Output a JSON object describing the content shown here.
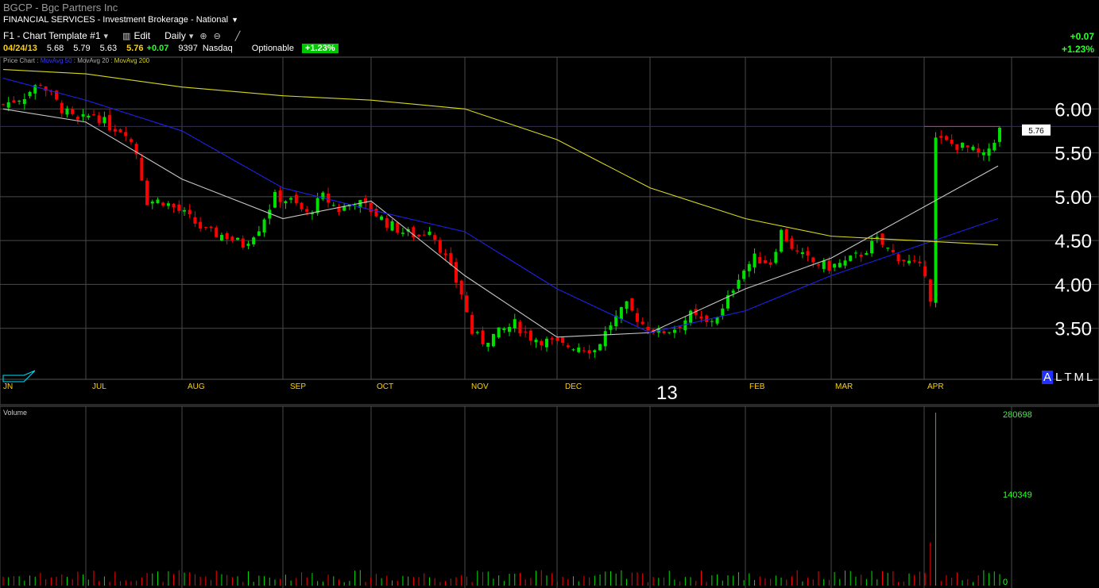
{
  "header": {
    "title": "BGCP - Bgc Partners Inc",
    "sector": "FINANCIAL SERVICES - Investment Brokerage - National"
  },
  "toolbar": {
    "template": "F1 - Chart Template #1",
    "edit": "Edit",
    "period": "Daily"
  },
  "quote": {
    "date": "04/24/13",
    "open": "5.68",
    "high": "5.79",
    "low": "5.63",
    "last": "5.76",
    "change": "+0.07",
    "volume": "9397",
    "exchange": "Nasdaq",
    "optionable": "Optionable",
    "pct_change": "+1.23%"
  },
  "right_summary": {
    "change": "+0.07",
    "pct": "+1.23%"
  },
  "price_legend": {
    "label": "Price Chart",
    "ma50": "MovAvg 50",
    "ma20": "MovAvg 20",
    "ma200": "MovAvg 200"
  },
  "volume_panel": {
    "label": "Volume",
    "ticks": [
      "280698",
      "140349",
      "0"
    ]
  },
  "time_period_buttons": [
    "A",
    "L",
    "T",
    "M",
    "L"
  ],
  "year_label": "13",
  "colors": {
    "up": "#00e000",
    "down": "#ff0000",
    "ma20": "#c8c8c8",
    "ma50": "#2020e8",
    "ma200": "#d8d820",
    "grid": "#4a4a4a"
  },
  "chart_data": {
    "type": "candlestick",
    "title": "BGCP - Bgc Partners Inc",
    "x_tick_labels": [
      "JN",
      "JUL",
      "AUG",
      "SEP",
      "OCT",
      "NOV",
      "DEC",
      "FEB",
      "MAR",
      "APR"
    ],
    "y_tick_labels": [
      "6.00",
      "5.50",
      "5.00",
      "4.50",
      "4.00",
      "3.50"
    ],
    "ylim": [
      3.1,
      6.6
    ],
    "last_price_marker": 5.76,
    "horizontal_line": 5.8,
    "price_closes": [
      {
        "x": "Jun",
        "y": 6.1
      },
      {
        "x": "Jul",
        "y": 5.95
      },
      {
        "x": "Aug",
        "y": 4.9
      },
      {
        "x": "Sep",
        "y": 4.95
      },
      {
        "x": "Oct",
        "y": 4.9
      },
      {
        "x": "Nov",
        "y": 3.4
      },
      {
        "x": "Dec",
        "y": 3.3
      },
      {
        "x": "Jan",
        "y": 3.55
      },
      {
        "x": "Feb",
        "y": 4.4
      },
      {
        "x": "Mar",
        "y": 4.3
      },
      {
        "x": "Apr",
        "y": 5.76
      }
    ],
    "series": [
      {
        "name": "MovAvg 20",
        "values": [
          6.0,
          5.85,
          5.2,
          4.75,
          4.95,
          4.1,
          3.4,
          3.45,
          3.95,
          4.3,
          5.35
        ]
      },
      {
        "name": "MovAvg 50",
        "values": [
          6.35,
          6.1,
          5.75,
          5.1,
          4.85,
          4.6,
          3.95,
          3.45,
          3.7,
          4.1,
          4.75
        ]
      },
      {
        "name": "MovAvg 200",
        "values": [
          6.45,
          6.4,
          6.25,
          6.15,
          6.1,
          6.0,
          5.65,
          5.1,
          4.75,
          4.55,
          4.45
        ]
      }
    ],
    "volume": {
      "ylim": [
        0,
        280698
      ],
      "peak": {
        "x": "Apr",
        "y": 280698
      }
    }
  }
}
